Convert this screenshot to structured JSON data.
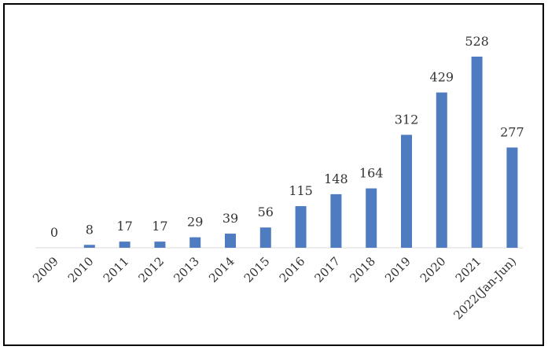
{
  "chart_data": {
    "type": "bar",
    "categories": [
      "2009",
      "2010",
      "2011",
      "2012",
      "2013",
      "2014",
      "2015",
      "2016",
      "2017",
      "2018",
      "2019",
      "2020",
      "2021",
      "2022(Jan-Jun)"
    ],
    "values": [
      0,
      8,
      17,
      17,
      29,
      39,
      56,
      115,
      148,
      164,
      312,
      429,
      528,
      277
    ],
    "title": "",
    "xlabel": "",
    "ylabel": "",
    "ylim": [
      0,
      528
    ],
    "grid": false,
    "legend": "none",
    "data_labels": true,
    "bar_color": "#4f7cc0",
    "axis_color": "#d9d9d9"
  }
}
